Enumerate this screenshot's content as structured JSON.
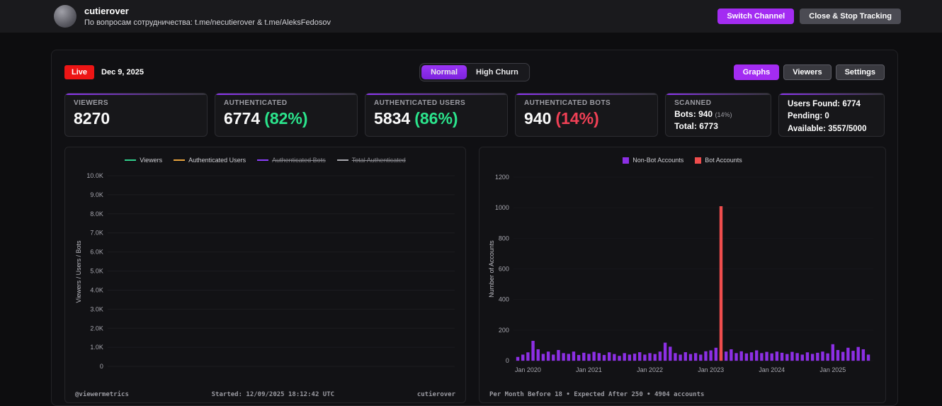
{
  "header": {
    "title": "cutierover",
    "subtitle": "По вопросам сотрудничества: t.me/necutierover & t.me/AleksFedosov",
    "switch_channel": "Switch Channel",
    "close_stop": "Close & Stop Tracking"
  },
  "toolbar": {
    "live": "Live",
    "date": "Dec 9, 2025",
    "mode_normal": "Normal",
    "mode_high_churn": "High Churn",
    "graphs": "Graphs",
    "viewers": "Viewers",
    "settings": "Settings"
  },
  "stats": {
    "viewers": {
      "label": "VIEWERS",
      "value": "8270"
    },
    "authenticated": {
      "label": "AUTHENTICATED",
      "value": "6774",
      "pct": "(82%)"
    },
    "auth_users": {
      "label": "AUTHENTICATED USERS",
      "value": "5834",
      "pct": "(86%)"
    },
    "auth_bots": {
      "label": "AUTHENTICATED BOTS",
      "value": "940",
      "pct": "(14%)"
    },
    "scanned": {
      "label": "SCANNED",
      "bots_label": "Bots:",
      "bots_value": "940",
      "bots_pct": "(14%)",
      "total_label": "Total:",
      "total_value": "6773"
    },
    "quota": {
      "users_found": "Users Found: 6774",
      "pending": "Pending: 0",
      "available": "Available: 3557/5000"
    }
  },
  "colors": {
    "accent_purple": "#a32cf2",
    "live_red": "#ed1515",
    "green": "#2be48c",
    "red": "#f04055",
    "bar_purple": "#8c2fe4",
    "bar_red": "#ef4d4d"
  },
  "chart_data": [
    {
      "type": "line",
      "title": "",
      "ylabel": "Viewers / Users / Bots",
      "ylim": [
        0,
        10000
      ],
      "ytick_labels": [
        "10.0K",
        "9.0K",
        "8.0K",
        "7.0K",
        "6.0K",
        "5.0K",
        "4.0K",
        "3.0K",
        "2.0K",
        "1.0K",
        "0"
      ],
      "grid": true,
      "legend_position": "top",
      "legend": [
        {
          "label": "Viewers",
          "color": "#31d08c",
          "enabled": true
        },
        {
          "label": "Authenticated Users",
          "color": "#e8a33d",
          "enabled": true
        },
        {
          "label": "Authenticated Bots",
          "color": "#8a3ffc",
          "enabled": false
        },
        {
          "label": "Total Authenticated",
          "color": "#a8a8ae",
          "enabled": false
        }
      ],
      "series": [],
      "footer_left": "@viewermetrics",
      "footer_center": "Started: 12/09/2025 18:12:42 UTC",
      "footer_right": "cutierover"
    },
    {
      "type": "bar",
      "title": "",
      "ylabel": "Number of Accounts",
      "ylim": [
        0,
        1200
      ],
      "ytick_labels": [
        "1200",
        "1000",
        "800",
        "600",
        "400",
        "200",
        "0"
      ],
      "grid": false,
      "legend_position": "top",
      "start_month": "Nov 2019",
      "x_axis_labels": [
        {
          "index": 2,
          "label": "Jan 2020"
        },
        {
          "index": 14,
          "label": "Jan 2021"
        },
        {
          "index": 26,
          "label": "Jan 2022"
        },
        {
          "index": 38,
          "label": "Jan 2023"
        },
        {
          "index": 50,
          "label": "Jan 2024"
        },
        {
          "index": 62,
          "label": "Jan 2025"
        }
      ],
      "series": [
        {
          "name": "Non-Bot Accounts",
          "color": "#8c2fe4",
          "values": [
            25,
            40,
            55,
            130,
            75,
            45,
            60,
            40,
            70,
            50,
            45,
            60,
            38,
            52,
            45,
            58,
            50,
            38,
            55,
            44,
            32,
            50,
            40,
            46,
            56,
            40,
            50,
            44,
            60,
            118,
            92,
            50,
            40,
            56,
            44,
            50,
            40,
            62,
            68,
            85,
            55,
            60,
            75,
            50,
            62,
            48,
            55,
            68,
            50,
            58,
            48,
            60,
            52,
            44,
            58,
            50,
            40,
            55,
            45,
            52,
            60,
            48,
            108,
            70,
            58,
            85,
            65,
            90,
            75,
            40
          ]
        },
        {
          "name": "Bot Accounts",
          "color": "#ef4d4d",
          "values": [
            0,
            0,
            0,
            0,
            0,
            0,
            0,
            0,
            0,
            0,
            0,
            0,
            0,
            0,
            0,
            0,
            0,
            0,
            0,
            0,
            0,
            0,
            0,
            0,
            0,
            0,
            0,
            0,
            0,
            0,
            0,
            0,
            0,
            0,
            0,
            0,
            0,
            0,
            0,
            0,
            1010,
            0,
            0,
            0,
            0,
            0,
            0,
            0,
            0,
            0,
            0,
            0,
            0,
            0,
            0,
            0,
            0,
            0,
            0,
            0,
            0,
            0,
            0,
            0,
            0,
            0,
            0,
            0,
            0,
            0
          ]
        }
      ],
      "footer": "Per Month Before 18 • Expected After 250 • 4904 accounts"
    }
  ]
}
